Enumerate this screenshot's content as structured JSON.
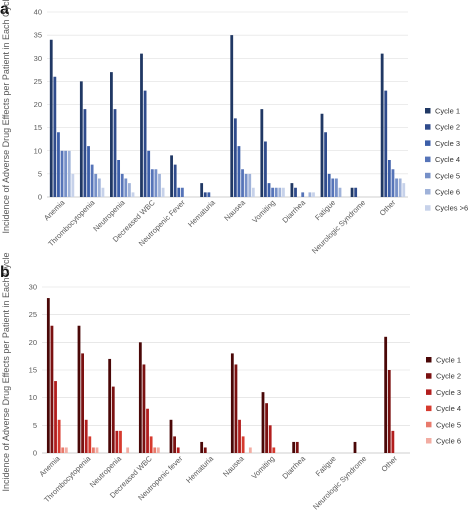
{
  "chart_data": [
    {
      "panel": "a",
      "type": "bar",
      "ylabel": "Incidence of Adverse Drug Effects per Patient in Each Cycle",
      "ylim": [
        0,
        40
      ],
      "yticks": [
        0,
        5,
        10,
        15,
        20,
        25,
        30,
        35,
        40
      ],
      "grid": true,
      "legend_position": "right",
      "categories": [
        "Anemia",
        "Thrombocytopenia",
        "Neutropenia",
        "Decreased WBC",
        "Neutropenic Fever",
        "Hematuria",
        "Nausea",
        "Vomiting",
        "Diarrhea",
        "Fatigue",
        "Neurologic Syndrome",
        "Other"
      ],
      "series": [
        {
          "name": "Cycle 1",
          "color": "#203864",
          "values": [
            34,
            25,
            27,
            31,
            9,
            3,
            35,
            19,
            3,
            18,
            2,
            31
          ]
        },
        {
          "name": "Cycle 2",
          "color": "#2f4b8c",
          "values": [
            26,
            19,
            19,
            23,
            7,
            1,
            17,
            12,
            2,
            14,
            2,
            23
          ]
        },
        {
          "name": "Cycle 3",
          "color": "#3c5ea8",
          "values": [
            14,
            11,
            8,
            10,
            2,
            1,
            11,
            3,
            0,
            5,
            0,
            8
          ]
        },
        {
          "name": "Cycle 4",
          "color": "#5674b8",
          "values": [
            10,
            7,
            5,
            6,
            2,
            0,
            6,
            2,
            1,
            4,
            0,
            6
          ]
        },
        {
          "name": "Cycle 5",
          "color": "#7690c8",
          "values": [
            10,
            5,
            4,
            6,
            0,
            0,
            5,
            2,
            0,
            4,
            0,
            4
          ]
        },
        {
          "name": "Cycle 6",
          "color": "#9fb2d9",
          "values": [
            10,
            4,
            3,
            5,
            0,
            0,
            5,
            2,
            1,
            2,
            0,
            4
          ]
        },
        {
          "name": "Cycles >6",
          "color": "#c7d2ea",
          "values": [
            5,
            2,
            1,
            2,
            0,
            0,
            2,
            2,
            1,
            0,
            0,
            3
          ]
        }
      ]
    },
    {
      "panel": "b",
      "type": "bar",
      "ylabel": "Incidence of Adverse Drug Effects per Patient in Each Cycle",
      "ylim": [
        0,
        30
      ],
      "yticks": [
        0,
        5,
        10,
        15,
        20,
        25,
        30
      ],
      "grid": true,
      "legend_position": "right",
      "categories": [
        "Anemia",
        "Thrombocytopenia",
        "Neutropenia",
        "Decreased WBC",
        "Neutropenic fever",
        "Hematuria",
        "Nausea",
        "Vomiting",
        "Diarrhea",
        "Fatigue",
        "Neurologic Syndrome",
        "Other"
      ],
      "series": [
        {
          "name": "Cycle 1",
          "color": "#4a0707",
          "values": [
            28,
            23,
            17,
            20,
            6,
            2,
            18,
            11,
            2,
            0,
            2,
            21
          ]
        },
        {
          "name": "Cycle 2",
          "color": "#7b1111",
          "values": [
            23,
            18,
            12,
            16,
            3,
            1,
            16,
            9,
            2,
            0,
            0,
            15
          ]
        },
        {
          "name": "Cycle 3",
          "color": "#b21e1e",
          "values": [
            13,
            6,
            4,
            8,
            1,
            0,
            6,
            5,
            0,
            0,
            0,
            4
          ]
        },
        {
          "name": "Cycle 4",
          "color": "#d63a2e",
          "values": [
            6,
            3,
            4,
            3,
            0,
            0,
            3,
            1,
            0,
            0,
            0,
            0
          ]
        },
        {
          "name": "Cycle 5",
          "color": "#e87a6c",
          "values": [
            1,
            1,
            0,
            1,
            0,
            0,
            0,
            0,
            0,
            0,
            0,
            0
          ]
        },
        {
          "name": "Cycle 6",
          "color": "#f2aca2",
          "values": [
            1,
            1,
            1,
            1,
            0,
            0,
            1,
            0,
            0,
            0,
            0,
            0
          ]
        }
      ]
    }
  ]
}
